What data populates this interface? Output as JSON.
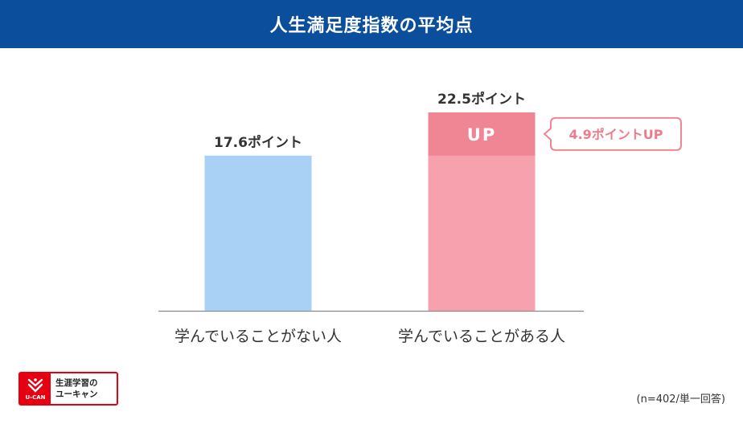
{
  "title": "人生満足度指数の平均点",
  "chart_data": {
    "type": "bar",
    "categories": [
      "学んでいることがない人",
      "学んでいることがある人"
    ],
    "values": [
      17.6,
      22.5
    ],
    "value_labels": [
      "17.6ポイント",
      "22.5ポイント"
    ],
    "highlight": {
      "base_value": 17.6,
      "increase": 4.9,
      "label": "UP",
      "callout": "4.9ポイントUP"
    },
    "ylim": [
      0,
      22.5
    ],
    "grid": false,
    "colors": {
      "bar_1": "#a8d1f5",
      "bar_2": "#f7a1ae",
      "bar_2_up": "#f08594",
      "callout_border": "#f08594",
      "callout_text": "#ee7b8c"
    }
  },
  "logo": {
    "mark_text": "U-CAN",
    "line1": "生涯学習の",
    "line2": "ユーキャン",
    "color": "#e60012"
  },
  "footnote": "(n=402/単一回答)",
  "theme": {
    "header_bg": "#0b4f9c"
  }
}
